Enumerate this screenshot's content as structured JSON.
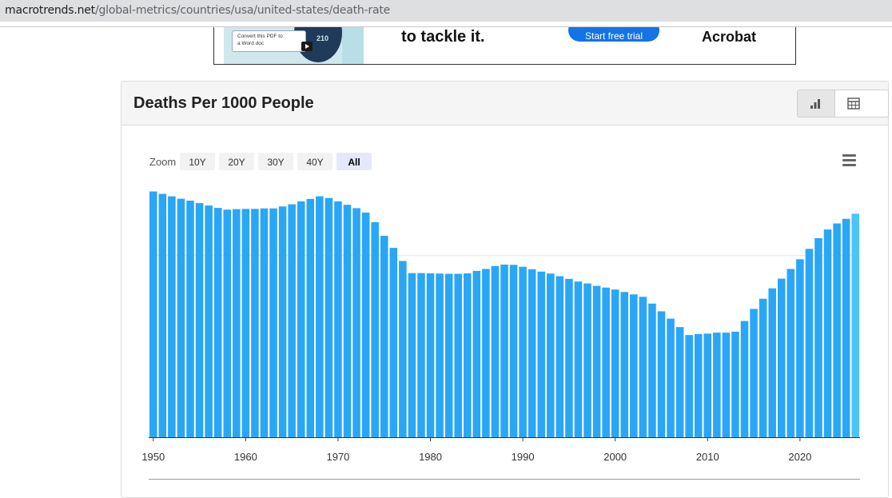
{
  "browser": {
    "url_host": "macrotrends.net",
    "url_path": "/global-metrics/countries/usa/united-states/death-rate"
  },
  "ad": {
    "card_line1": "Convert this PDF to",
    "card_line2": "a Word doc",
    "disc_number": "210",
    "headline": "to tackle it.",
    "cta": "Start free trial",
    "brand": "Acrobat"
  },
  "panel": {
    "title": "Deaths Per 1000 People",
    "views": [
      {
        "name": "chart",
        "icon": "bar-chart-icon",
        "active": true
      },
      {
        "name": "table",
        "icon": "table-icon",
        "active": false
      }
    ]
  },
  "zoom": {
    "label": "Zoom",
    "options": [
      "10Y",
      "20Y",
      "30Y",
      "40Y",
      "All"
    ],
    "selected": "All"
  },
  "colors": {
    "bar": "#2aa6f7",
    "bar_latest": "#4bc3fb",
    "axis": "#333333"
  },
  "chart_data": {
    "type": "bar",
    "title": "Deaths Per 1000 People",
    "xlabel": "",
    "ylabel": "",
    "x_tick_labels": [
      "1950",
      "1960",
      "1970",
      "1980",
      "1990",
      "2000",
      "2010",
      "2020"
    ],
    "ylim": [
      0,
      10.2
    ],
    "gridlines_y": [
      7.5
    ],
    "grid": true,
    "x": [
      1950,
      1951,
      1952,
      1953,
      1954,
      1955,
      1956,
      1957,
      1958,
      1959,
      1960,
      1961,
      1962,
      1963,
      1964,
      1965,
      1966,
      1967,
      1968,
      1969,
      1970,
      1971,
      1972,
      1973,
      1974,
      1975,
      1976,
      1977,
      1978,
      1979,
      1980,
      1981,
      1982,
      1983,
      1984,
      1985,
      1986,
      1987,
      1988,
      1989,
      1990,
      1991,
      1992,
      1993,
      1994,
      1995,
      1996,
      1997,
      1998,
      1999,
      2000,
      2001,
      2002,
      2003,
      2004,
      2005,
      2006,
      2007,
      2008,
      2009,
      2010,
      2011,
      2012,
      2013,
      2014,
      2015,
      2016,
      2017,
      2018,
      2019,
      2020,
      2021,
      2022,
      2023,
      2024,
      2025,
      2026
    ],
    "series": [
      {
        "values": [
          10.15,
          10.05,
          9.95,
          9.85,
          9.77,
          9.67,
          9.57,
          9.47,
          9.4,
          9.42,
          9.43,
          9.43,
          9.45,
          9.45,
          9.53,
          9.62,
          9.74,
          9.84,
          9.95,
          9.88,
          9.74,
          9.6,
          9.46,
          9.28,
          8.88,
          8.32,
          7.82,
          7.28,
          6.78,
          6.78,
          6.77,
          6.76,
          6.75,
          6.75,
          6.77,
          6.87,
          6.95,
          7.07,
          7.13,
          7.12,
          7.04,
          6.94,
          6.84,
          6.76,
          6.65,
          6.54,
          6.43,
          6.35,
          6.25,
          6.18,
          6.1,
          6.0,
          5.9,
          5.8,
          5.52,
          5.2,
          4.9,
          4.55,
          4.22,
          4.26,
          4.28,
          4.32,
          4.32,
          4.36,
          4.8,
          5.3,
          5.72,
          6.15,
          6.55,
          6.95,
          7.35,
          7.78,
          8.22,
          8.58,
          8.83,
          9.02,
          9.23
        ]
      }
    ]
  }
}
